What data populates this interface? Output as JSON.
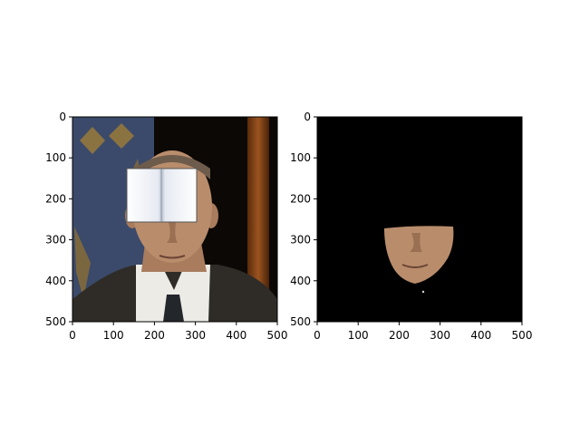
{
  "chart_data": [
    {
      "type": "image",
      "content": "photo of a man in suit and tie with a white book/card covering the eyes; dark background",
      "xlim": [
        0,
        500
      ],
      "ylim": [
        500,
        0
      ],
      "xticks": [
        0,
        100,
        200,
        300,
        400,
        500
      ],
      "yticks": [
        0,
        100,
        200,
        300,
        400,
        500
      ],
      "xtick_labels": [
        "0",
        "100",
        "200",
        "300",
        "400",
        "500"
      ],
      "ytick_labels": [
        "0",
        "100",
        "200",
        "300",
        "400",
        "500"
      ]
    },
    {
      "type": "image",
      "content": "face segmentation mask: lower face (nose, mouth, chin) of the man on a black background",
      "xlim": [
        0,
        500
      ],
      "ylim": [
        500,
        0
      ],
      "xticks": [
        0,
        100,
        200,
        300,
        400,
        500
      ],
      "yticks": [
        0,
        100,
        200,
        300,
        400,
        500
      ],
      "xtick_labels": [
        "0",
        "100",
        "200",
        "300",
        "400",
        "500"
      ],
      "ytick_labels": [
        "0",
        "100",
        "200",
        "300",
        "400",
        "500"
      ]
    }
  ],
  "colors": {
    "background_dark": "#0b0806",
    "wall_blue": "#3b4a6a",
    "gold_pattern": "#9a7a3a",
    "wood": "#7a3d12",
    "skin": "#b98d6c",
    "suit": "#2f2c28",
    "shirt": "#ecebe6",
    "tie": "#23262b",
    "book": "#f2f4f8"
  },
  "icons": [
    "photo-image",
    "face-mask-image"
  ]
}
